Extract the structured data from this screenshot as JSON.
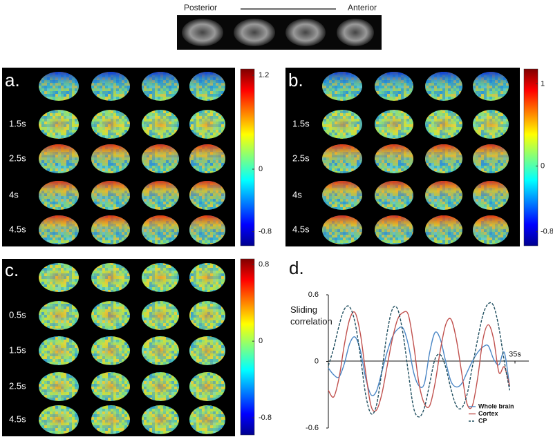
{
  "header": {
    "left": "Posterior",
    "right": "Anterior"
  },
  "panels": [
    {
      "label": "a.",
      "row_labels": [
        "1.5s",
        "2.5s",
        "4s",
        "4.5s"
      ],
      "colorbar_lim": [
        -0.98,
        1.28
      ],
      "colorbar_ticks": [
        1.2,
        0,
        -0.8
      ]
    },
    {
      "label": "b.",
      "row_labels": [
        "1.5s",
        "2.5s",
        "4s",
        "4.5s"
      ],
      "colorbar_lim": [
        -0.97,
        1.18
      ],
      "colorbar_ticks": [
        1,
        0,
        -0.8
      ]
    },
    {
      "label": "c.",
      "row_labels": [
        "0.5s",
        "1.5s",
        "2.5s",
        "4.5s"
      ],
      "colorbar_lim": [
        -0.98,
        0.86
      ],
      "colorbar_ticks": [
        0.8,
        0,
        -0.8
      ]
    }
  ],
  "chart_data": {
    "type": "line",
    "label": "d.",
    "ylabel": "Sliding correlation",
    "x": [
      0,
      1,
      2,
      3,
      4,
      5,
      6,
      7,
      8,
      9,
      10,
      11,
      12,
      13,
      14,
      15,
      16,
      17,
      18,
      19,
      20,
      21,
      22,
      23,
      24,
      25,
      26,
      27,
      28,
      29,
      30,
      31,
      32,
      33,
      34
    ],
    "xlim": [
      0,
      37
    ],
    "xticks": [
      {
        "value": 35,
        "label": "35s"
      }
    ],
    "ylim": [
      -0.6,
      0.6
    ],
    "yticks": [
      0.6,
      0,
      -0.6
    ],
    "legend": "lower right",
    "series": [
      {
        "name": "Whole brain",
        "color": "#4a86c5",
        "dash": false,
        "values": [
          -0.06,
          -0.12,
          -0.14,
          -0.02,
          0.16,
          0.22,
          0.1,
          -0.15,
          -0.3,
          -0.27,
          -0.1,
          0.08,
          0.22,
          0.29,
          0.3,
          0.15,
          -0.1,
          -0.22,
          -0.2,
          0.08,
          0.26,
          0.2,
          0.0,
          -0.18,
          -0.23,
          -0.2,
          -0.1,
          0.0,
          0.08,
          0.13,
          0.14,
          0.02,
          -0.03,
          0.08,
          -0.23
        ]
      },
      {
        "name": "Cortex",
        "color": "#c0504d",
        "dash": false,
        "values": [
          -0.26,
          -0.32,
          -0.15,
          0.15,
          0.38,
          0.44,
          0.25,
          -0.1,
          -0.4,
          -0.44,
          -0.3,
          -0.05,
          0.2,
          0.38,
          0.44,
          0.42,
          0.15,
          -0.2,
          -0.38,
          -0.4,
          -0.2,
          0.1,
          0.33,
          0.38,
          0.2,
          -0.1,
          -0.38,
          -0.4,
          -0.15,
          0.2,
          0.33,
          0.2,
          -0.1,
          -0.05,
          -0.22
        ]
      },
      {
        "name": "CP",
        "color": "#1f4e5f",
        "dash": true,
        "values": [
          -0.04,
          0.12,
          0.32,
          0.47,
          0.49,
          0.35,
          0.05,
          -0.3,
          -0.47,
          -0.4,
          -0.1,
          0.25,
          0.47,
          0.47,
          0.25,
          -0.1,
          -0.42,
          -0.5,
          -0.42,
          -0.2,
          0.02,
          0.06,
          -0.05,
          -0.25,
          -0.4,
          -0.42,
          -0.3,
          -0.05,
          0.2,
          0.42,
          0.52,
          0.5,
          0.3,
          0.0,
          -0.26
        ]
      }
    ]
  }
}
